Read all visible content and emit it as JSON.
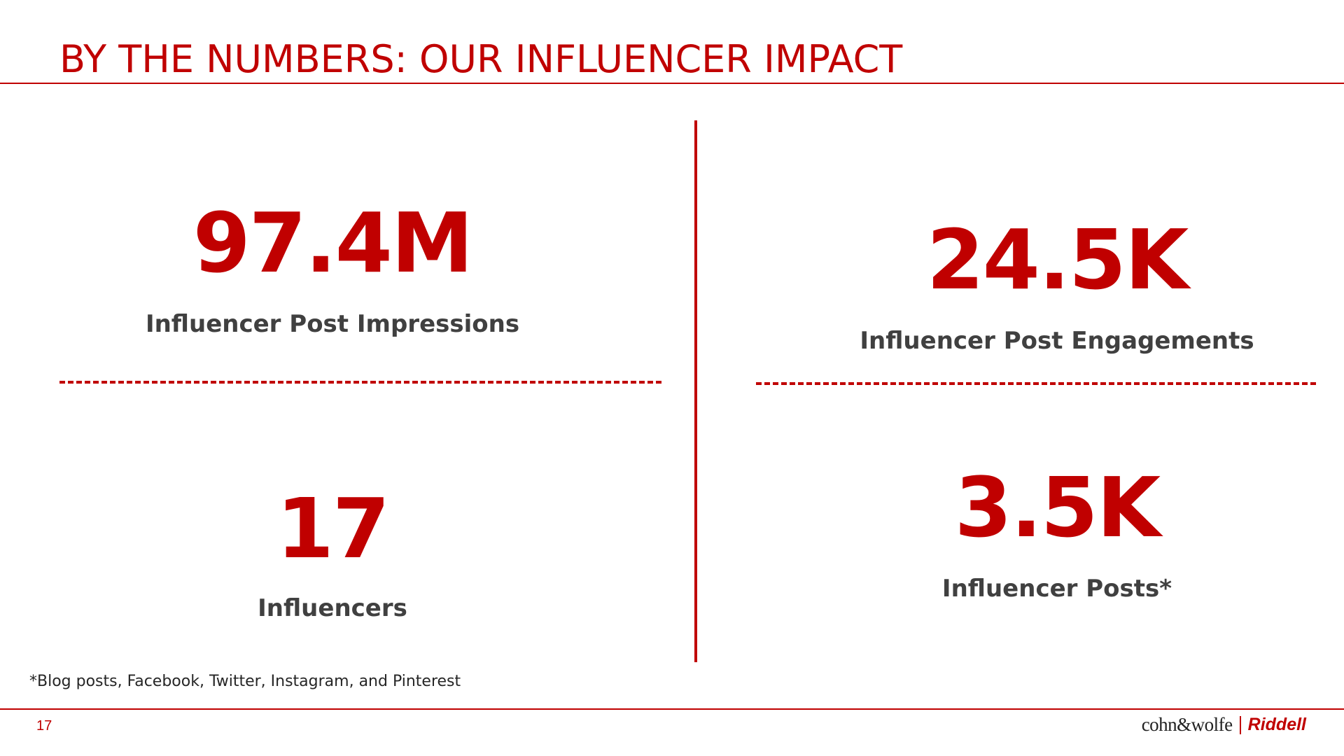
{
  "slide": {
    "title": "BY THE NUMBERS:  OUR INFLUENCER IMPACT",
    "page_number": "17",
    "footnote": "*Blog posts, Facebook, Twitter, Instagram, and Pinterest"
  },
  "stats": {
    "impressions": {
      "value": "97.4M",
      "label": "Influencer Post Impressions"
    },
    "engagements": {
      "value": "24.5K",
      "label": "Influencer Post Engagements"
    },
    "influencers": {
      "value": "17",
      "label": "Influencers"
    },
    "posts": {
      "value": "3.5K",
      "label": "Influencer Posts*"
    }
  },
  "logo": {
    "agency": "cohn&wolfe",
    "brand": "Riddell"
  },
  "colors": {
    "accent": "#c00000",
    "label_text": "#404040"
  }
}
